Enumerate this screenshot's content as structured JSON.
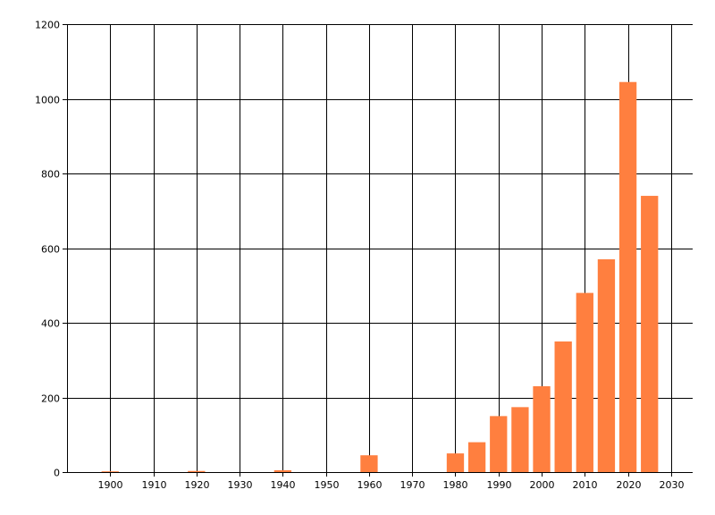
{
  "chart_data": {
    "type": "bar",
    "x": [
      1900,
      1920,
      1940,
      1960,
      1980,
      1985,
      1990,
      1995,
      2000,
      2005,
      2010,
      2015,
      2020,
      2025
    ],
    "values": [
      2,
      3,
      5,
      45,
      50,
      80,
      150,
      174,
      230,
      350,
      480,
      570,
      1045,
      740
    ],
    "bar_width_years": 4,
    "x_ticks": [
      "1900",
      "1910",
      "1920",
      "1930",
      "1940",
      "1950",
      "1960",
      "1970",
      "1980",
      "1990",
      "2000",
      "2010",
      "2020",
      "2030"
    ],
    "y_ticks": [
      "0",
      "200",
      "400",
      "600",
      "800",
      "1000",
      "1200"
    ],
    "xlim": [
      1890,
      2035
    ],
    "ylim": [
      0,
      1200
    ],
    "grid": true,
    "title": "",
    "xlabel": "",
    "ylabel": "",
    "colors": {
      "bar": "#ff7f3f",
      "grid": "#000000",
      "axis": "#000000"
    }
  }
}
